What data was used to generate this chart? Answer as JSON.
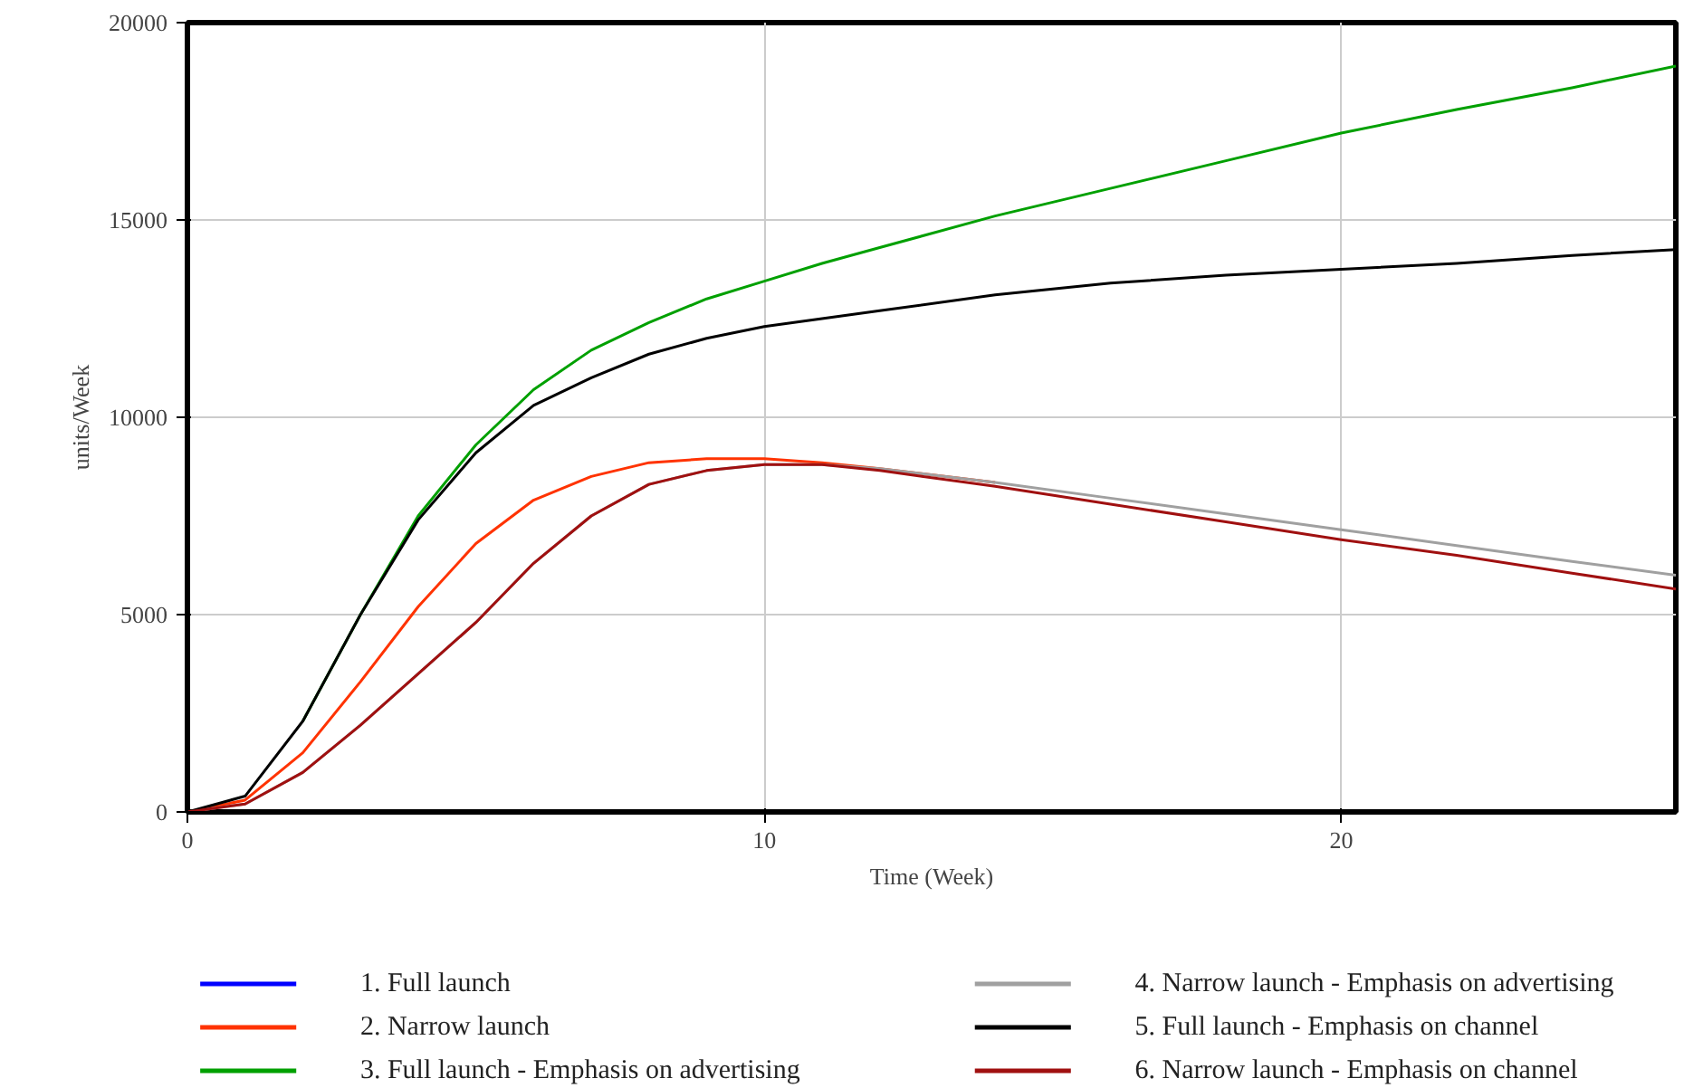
{
  "chart_data": {
    "type": "line",
    "xlabel": "Time (Week)",
    "ylabel": "units/Week",
    "x": [
      0,
      1,
      2,
      3,
      4,
      5,
      6,
      7,
      8,
      9,
      10,
      11,
      12,
      14,
      16,
      18,
      20,
      22,
      24,
      25.8
    ],
    "xlim": [
      0,
      25.8
    ],
    "ylim": [
      0,
      20000
    ],
    "xticks": [
      0,
      10,
      20
    ],
    "yticks": [
      0,
      5000,
      10000,
      15000,
      20000
    ],
    "grid": true,
    "legend": "bottom",
    "line_style": "solid",
    "marker": "none",
    "series": [
      {
        "name": "1. Full launch",
        "color": "#0000ff",
        "values": [
          null,
          null,
          null,
          null,
          null,
          null,
          null,
          null,
          null,
          null,
          null,
          null,
          null,
          null,
          null,
          null,
          null,
          null,
          null,
          null
        ]
      },
      {
        "name": "2. Narrow launch",
        "color": "#ff3300",
        "values": [
          0,
          300,
          1500,
          3300,
          5200,
          6800,
          7900,
          8500,
          8850,
          8950,
          8950,
          8850,
          8700,
          8350,
          null,
          null,
          null,
          null,
          null,
          null
        ]
      },
      {
        "name": "3. Full launch - Emphasis on advertising",
        "color": "#00a000",
        "values": [
          null,
          null,
          2300,
          5000,
          7500,
          9300,
          10700,
          11700,
          12400,
          13000,
          13450,
          13900,
          14300,
          15100,
          15800,
          16500,
          17200,
          17800,
          18350,
          18900
        ]
      },
      {
        "name": "4. Narrow launch - Emphasis on advertising",
        "color": "#a0a0a0",
        "values": [
          0,
          200,
          1000,
          2200,
          3500,
          4800,
          6300,
          7500,
          8300,
          8650,
          8800,
          8800,
          8700,
          8350,
          7950,
          7550,
          7150,
          6750,
          6350,
          6000
        ]
      },
      {
        "name": "5. Full launch - Emphasis on channel",
        "color": "#000000",
        "values": [
          0,
          400,
          2300,
          5000,
          7400,
          9100,
          10300,
          11000,
          11600,
          12000,
          12300,
          12500,
          12700,
          13100,
          13400,
          13600,
          13750,
          13900,
          14100,
          14250
        ]
      },
      {
        "name": "6. Narrow launch - Emphasis on channel",
        "color": "#a01010",
        "values": [
          0,
          200,
          1000,
          2200,
          3500,
          4800,
          6300,
          7500,
          8300,
          8650,
          8800,
          8800,
          8650,
          8250,
          7800,
          7350,
          6900,
          6500,
          6050,
          5650
        ]
      }
    ]
  }
}
